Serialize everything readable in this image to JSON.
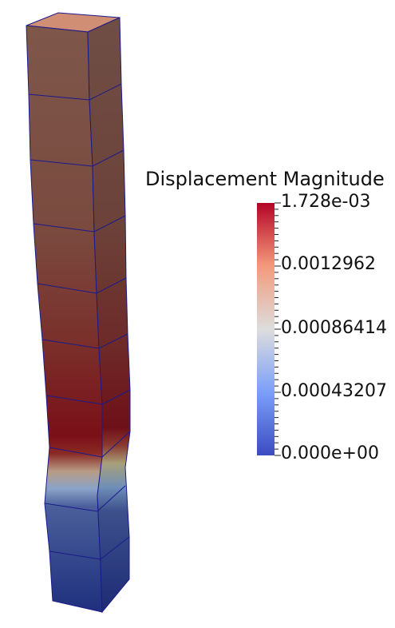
{
  "legend": {
    "title": "Displacement Magnitude",
    "max_label": "1.728e-03",
    "tick_labels": [
      "0.0012962",
      "0.00086414",
      "0.00043207"
    ],
    "min_label": "0.000e+00"
  },
  "colormap": {
    "low": "#3b4cc0",
    "mid": "#dddddd",
    "high": "#b40426"
  },
  "mesh": {
    "edge_color": "#1a1a8c"
  }
}
